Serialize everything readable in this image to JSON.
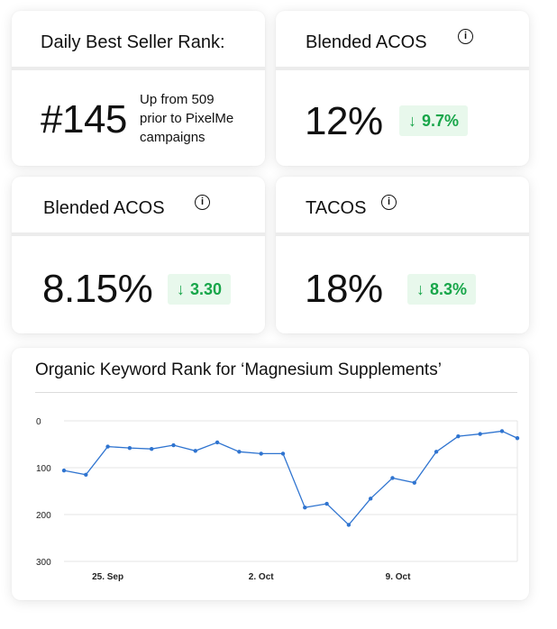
{
  "cards": {
    "rank": {
      "title": "Daily Best Seller Rank:",
      "value": "#145",
      "note_line1": "Up from 509",
      "note_line2": "prior to PixelMe",
      "note_line3": "campaigns"
    },
    "acos1": {
      "title": "Blended ACOS",
      "value": "12%",
      "change": "9.7%"
    },
    "acos2": {
      "title": "Blended ACOS",
      "value": "8.15%",
      "change": "3.30"
    },
    "tacos": {
      "title": "TACOS",
      "value": "18%",
      "change": "8.3%"
    }
  },
  "icons": {
    "info": "i",
    "down_arrow": "↓"
  },
  "colors": {
    "badge_bg": "#e8f8ec",
    "badge_text": "#18a64a",
    "line": "#2f74d0"
  },
  "chart_data": {
    "type": "line",
    "title": "Organic Keyword Rank for ‘Magnesium Supplements’",
    "ylim": [
      300,
      0
    ],
    "y_ticks": [
      "0",
      "100",
      "200",
      "300"
    ],
    "x_ticks": [
      {
        "label": "25. Sep",
        "x": 2
      },
      {
        "label": "2. Oct",
        "x": 9
      },
      {
        "label": "9. Oct",
        "x": 15.25
      }
    ],
    "x_range": [
      0,
      20.7
    ],
    "x": [
      0,
      1,
      2,
      3,
      4,
      5,
      6,
      7,
      8,
      9,
      10,
      11,
      12,
      13,
      14,
      15,
      16,
      17,
      18,
      19,
      20,
      20.7
    ],
    "y": [
      106,
      115,
      55,
      58,
      60,
      52,
      64,
      46,
      66,
      70,
      70,
      185,
      177,
      222,
      166,
      122,
      132,
      66,
      33,
      28,
      22,
      37
    ]
  }
}
